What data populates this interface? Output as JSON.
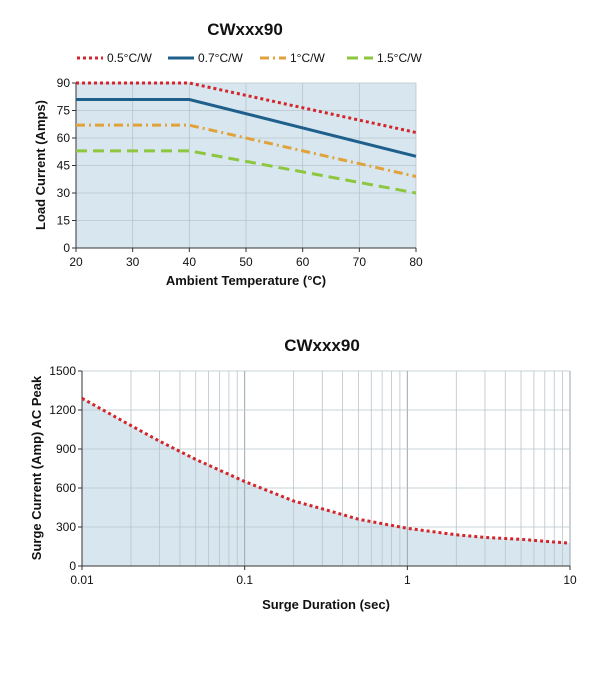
{
  "chart_data": [
    {
      "type": "line",
      "title": "CWxxx90",
      "xlabel": "Ambient Temperature (°C)",
      "ylabel": "Load Current (Amps)",
      "xlim": [
        20,
        80
      ],
      "ylim": [
        0,
        90
      ],
      "xticks": [
        20,
        30,
        40,
        50,
        60,
        70,
        80
      ],
      "yticks": [
        0,
        15,
        30,
        45,
        60,
        75,
        90
      ],
      "grid": true,
      "legend": "top",
      "series": [
        {
          "name": "0.5°C/W",
          "color": "#d2262c",
          "style": "dotted",
          "x": [
            20,
            40,
            80
          ],
          "y": [
            90,
            90,
            63
          ]
        },
        {
          "name": "0.7°C/W",
          "color": "#1f5f8b",
          "style": "solid",
          "x": [
            20,
            40,
            80
          ],
          "y": [
            81,
            81,
            50
          ]
        },
        {
          "name": "1°C/W",
          "color": "#e0a23a",
          "style": "dashdot",
          "x": [
            20,
            40,
            80
          ],
          "y": [
            67,
            67,
            39
          ]
        },
        {
          "name": "1.5°C/W",
          "color": "#8dc63f",
          "style": "dashed",
          "x": [
            20,
            40,
            80
          ],
          "y": [
            53,
            53,
            30
          ]
        }
      ]
    },
    {
      "type": "line",
      "title": "CWxxx90",
      "xlabel": "Surge Duration (sec)",
      "ylabel": "Surge Current (Amp) AC Peak",
      "xscale": "log",
      "xlim": [
        0.01,
        10
      ],
      "ylim": [
        0,
        1500
      ],
      "xticks": [
        0.01,
        0.1,
        1,
        10
      ],
      "xtick_labels": [
        "0.01",
        "0.1",
        "1",
        "10"
      ],
      "yticks": [
        0,
        300,
        600,
        900,
        1200,
        1500
      ],
      "grid": true,
      "series": [
        {
          "color": "#d2262c",
          "style": "dotted",
          "x": [
            0.01,
            0.02,
            0.03,
            0.05,
            0.1,
            0.2,
            0.3,
            0.5,
            1,
            2,
            3,
            5,
            10
          ],
          "y": [
            1290,
            1080,
            960,
            820,
            650,
            500,
            440,
            360,
            290,
            240,
            220,
            205,
            175
          ]
        }
      ]
    }
  ]
}
